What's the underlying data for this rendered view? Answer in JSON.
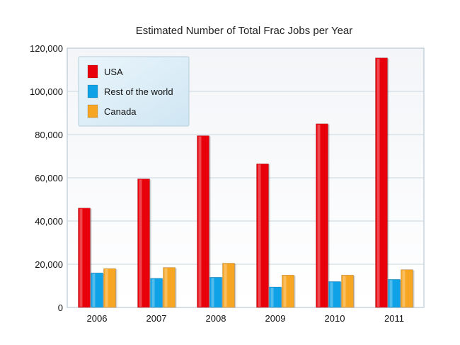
{
  "chart_data": {
    "type": "bar",
    "title": "Estimated Number of Total Frac Jobs per Year",
    "xlabel": "",
    "ylabel": "",
    "categories": [
      "2006",
      "2007",
      "2008",
      "2009",
      "2010",
      "2011"
    ],
    "ylim": [
      0,
      120000
    ],
    "yticks": [
      0,
      20000,
      40000,
      60000,
      80000,
      100000,
      120000
    ],
    "ytick_labels": [
      "0",
      "20,000",
      "40,000",
      "60,000",
      "80,000",
      "100,000",
      "120,000"
    ],
    "grid": true,
    "legend_position": "top-left",
    "series": [
      {
        "name": "USA",
        "color": "#e8000b",
        "values": [
          46000,
          59500,
          79500,
          66500,
          85000,
          115500
        ]
      },
      {
        "name": "Rest of the world",
        "color": "#10a2e6",
        "values": [
          16000,
          13500,
          14000,
          9500,
          12000,
          13000
        ]
      },
      {
        "name": "Canada",
        "color": "#f6a623",
        "values": [
          18000,
          18500,
          20500,
          15000,
          15000,
          17500
        ]
      }
    ]
  }
}
